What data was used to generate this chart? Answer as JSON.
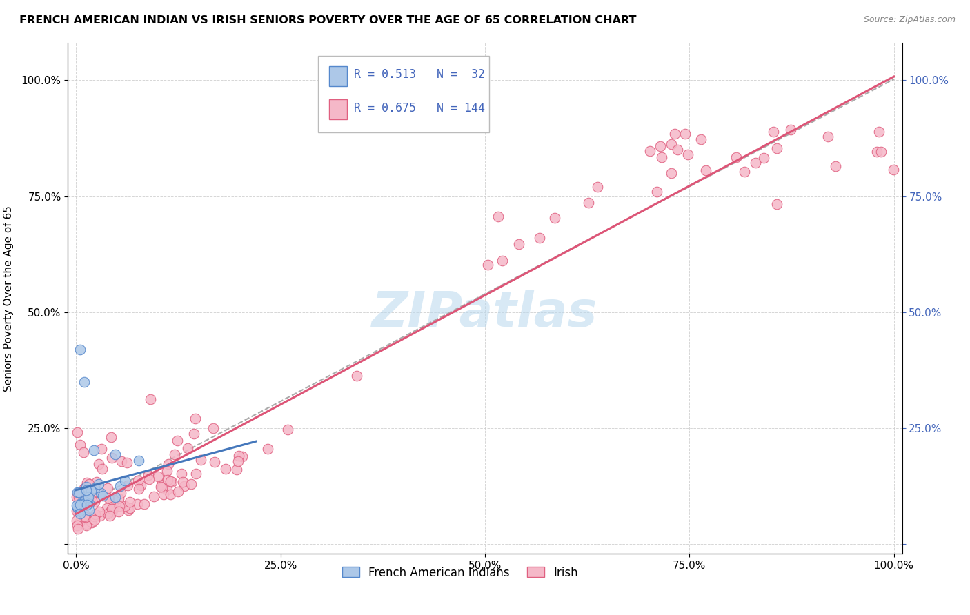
{
  "title": "FRENCH AMERICAN INDIAN VS IRISH SENIORS POVERTY OVER THE AGE OF 65 CORRELATION CHART",
  "source": "Source: ZipAtlas.com",
  "ylabel": "Seniors Poverty Over the Age of 65",
  "r_fai": 0.513,
  "n_fai": 32,
  "r_irish": 0.675,
  "n_irish": 144,
  "color_fai_fill": "#adc8e8",
  "color_fai_edge": "#5588cc",
  "color_irish_fill": "#f5b8c8",
  "color_irish_edge": "#e06080",
  "color_trendline_fai": "#4477bb",
  "color_trendline_irish": "#dd5577",
  "color_trendline_overall": "#aaaaaa",
  "watermark_color": "#b8d8ee",
  "background_color": "#ffffff",
  "grid_color": "#cccccc",
  "legend_fai": "French American Indians",
  "legend_irish": "Irish",
  "ytick_color": "#4466bb",
  "right_ytick_color": "#4466bb"
}
